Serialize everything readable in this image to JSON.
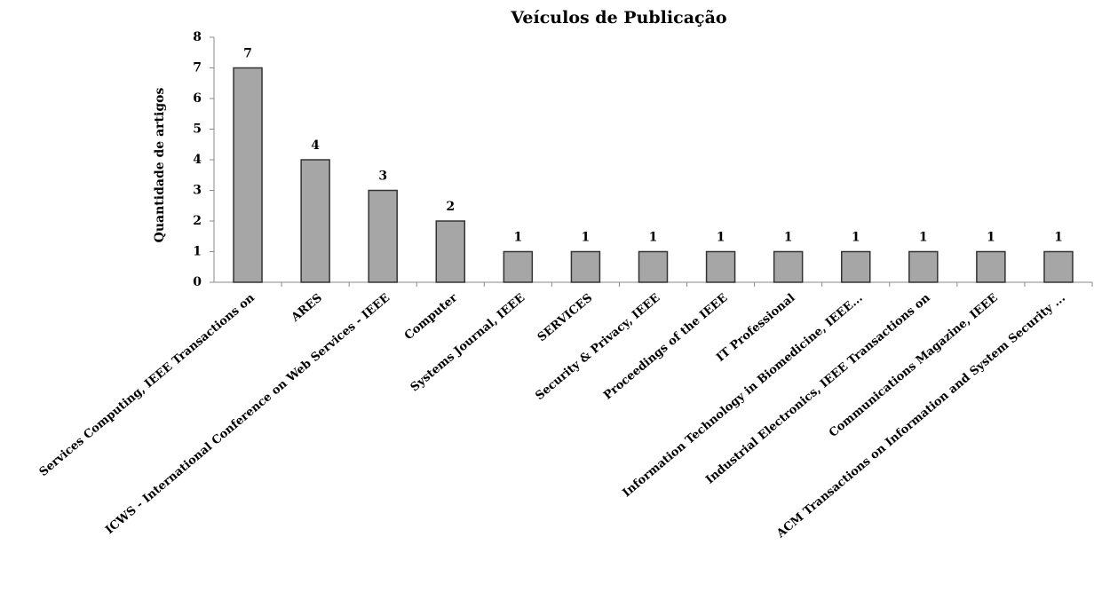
{
  "chart_data": {
    "type": "bar",
    "title": "Veículos de Publicação",
    "y_label": "Quantidade de artigos",
    "categories": [
      "Services Computing, IEEE Transactions on",
      "ARES",
      "ICWS - International Conference on Web Services - IEEE",
      "Computer",
      "Systems Journal, IEEE",
      "SERVICES",
      "Security & Privacy, IEEE",
      "Proceedings of the IEEE",
      "IT Professional",
      "Information Technology in Biomedicine, IEEE...",
      "Industrial Electronics, IEEE Transactions on",
      "Communications Magazine, IEEE",
      "ACM Transactions on Information and System Security ..."
    ],
    "values": [
      7,
      4,
      3,
      2,
      1,
      1,
      1,
      1,
      1,
      1,
      1,
      1,
      1
    ],
    "color": "#a6a6a6",
    "ylim": [
      0,
      8
    ],
    "yticks": [
      0,
      1,
      2,
      3,
      4,
      5,
      6,
      7,
      8
    ],
    "grid": false
  }
}
